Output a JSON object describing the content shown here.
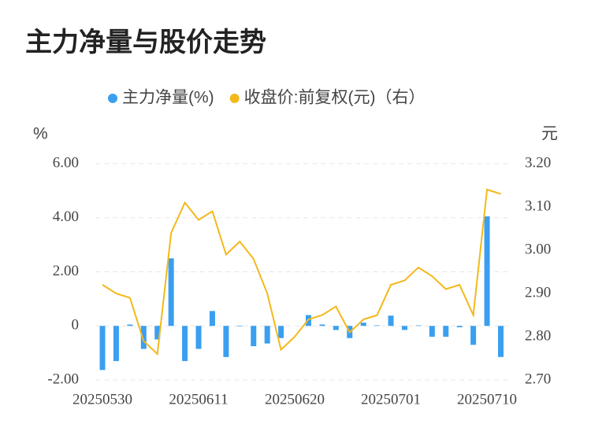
{
  "chart_data": {
    "type": "bar-line",
    "title": "主力净量与股价走势",
    "y_label": "%",
    "y2_label": "元",
    "categories": [
      "20250530",
      null,
      null,
      null,
      null,
      null,
      null,
      "20250611",
      null,
      null,
      null,
      null,
      null,
      null,
      "20250620",
      null,
      null,
      null,
      null,
      null,
      null,
      "20250701",
      null,
      null,
      null,
      null,
      null,
      null,
      "20250710",
      null
    ],
    "series": [
      {
        "name": "主力净量(%)",
        "type": "bar",
        "color": "#3a9ff0",
        "values": [
          -1.63,
          -1.3,
          0.05,
          -0.85,
          -0.5,
          2.5,
          -1.3,
          -0.85,
          0.55,
          -1.15,
          -0.02,
          -0.75,
          -0.65,
          -0.45,
          0,
          0.4,
          0.05,
          -0.15,
          -0.45,
          0.12,
          0.02,
          0.38,
          -0.15,
          0.02,
          -0.4,
          -0.4,
          -0.05,
          -0.7,
          4.05,
          -1.15
        ]
      },
      {
        "name": "收盘价:前复权(元)（右）",
        "type": "line",
        "axis": "y2",
        "color": "#f4b81c",
        "values": [
          2.92,
          2.9,
          2.89,
          2.79,
          2.76,
          3.04,
          3.11,
          3.07,
          3.09,
          2.99,
          3.02,
          2.98,
          2.9,
          2.77,
          2.8,
          2.84,
          2.85,
          2.87,
          2.81,
          2.84,
          2.85,
          2.92,
          2.93,
          2.96,
          2.94,
          2.91,
          2.92,
          2.85,
          3.14,
          3.13
        ]
      }
    ],
    "ylim": [
      -2,
      6
    ],
    "yticks": [
      {
        "value": -2,
        "label": "-2.00"
      },
      0,
      {
        "value": 2,
        "label": "2.00"
      },
      {
        "value": 4,
        "label": "4.00"
      },
      {
        "value": 6,
        "label": "6.00"
      }
    ],
    "y2lim": [
      2.7,
      3.2
    ],
    "y2ticks": [
      {
        "value": 2.7,
        "label": "2.70"
      },
      {
        "value": 2.8,
        "label": "2.80"
      },
      {
        "value": 2.9,
        "label": "2.90"
      },
      {
        "value": 3.0,
        "label": "3.00"
      },
      {
        "value": 3.1,
        "label": "3.10"
      },
      {
        "value": 3.2,
        "label": "3.20"
      }
    ],
    "grid": true
  }
}
